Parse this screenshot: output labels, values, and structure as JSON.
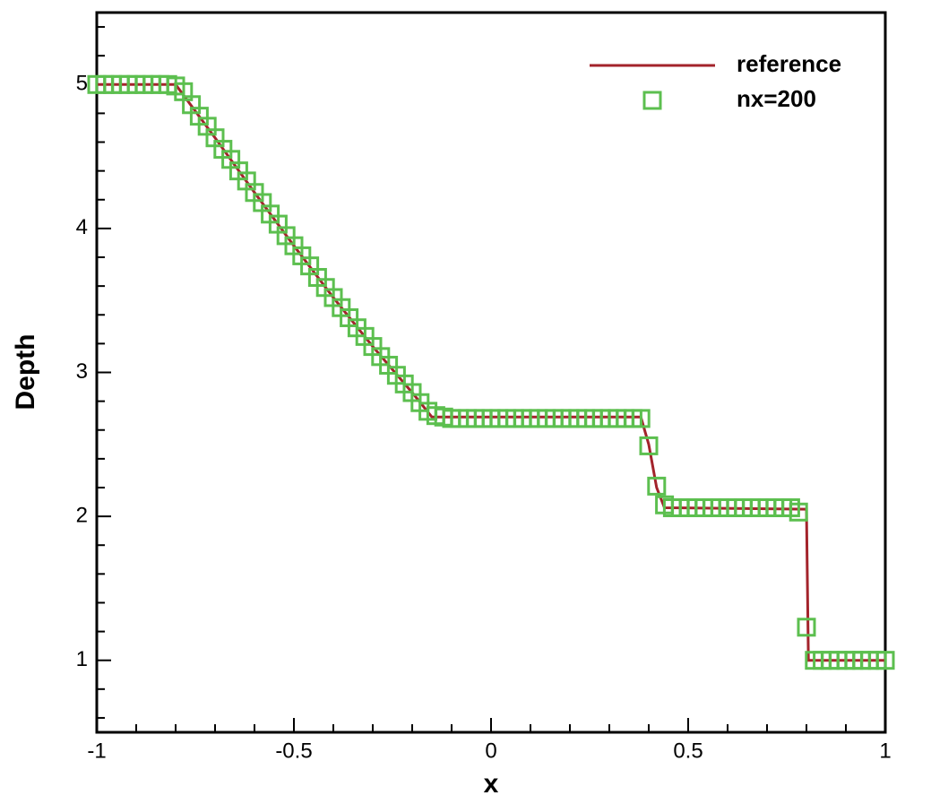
{
  "chart_data": {
    "type": "line",
    "xlabel": "x",
    "ylabel": "Depth",
    "xlim": [
      -1,
      1
    ],
    "ylim": [
      0.5,
      5.5
    ],
    "xticks": [
      -1,
      -0.5,
      0,
      0.5,
      1
    ],
    "yticks": [
      1,
      2,
      3,
      4,
      5
    ],
    "xminorticks": [
      -0.9,
      -0.8,
      -0.7,
      -0.6,
      -0.4,
      -0.3,
      -0.2,
      -0.1,
      0.1,
      0.2,
      0.3,
      0.4,
      0.6,
      0.7,
      0.8,
      0.9
    ],
    "yminorticks": [
      0.6,
      0.8,
      1.2,
      1.4,
      1.6,
      1.8,
      2.2,
      2.4,
      2.6,
      2.8,
      3.2,
      3.4,
      3.6,
      3.8,
      4.2,
      4.4,
      4.6,
      4.8,
      5.2,
      5.4
    ],
    "legend": "upper right",
    "series": [
      {
        "name": "reference",
        "color": "#a3232b",
        "style": "line",
        "x": [
          -1,
          -0.8,
          -0.7,
          -0.6,
          -0.5,
          -0.4,
          -0.3,
          -0.2,
          -0.15,
          0.38,
          0.4,
          0.42,
          0.44,
          0.8,
          0.805,
          1
        ],
        "values": [
          5,
          5,
          4.63,
          4.25,
          3.88,
          3.52,
          3.18,
          2.86,
          2.69,
          2.69,
          2.5,
          2.2,
          2.06,
          2.05,
          1,
          1
        ]
      },
      {
        "name": "nx=200",
        "color": "#5cbf4f",
        "style": "square",
        "x": [
          -1,
          -0.98,
          -0.96,
          -0.94,
          -0.92,
          -0.9,
          -0.88,
          -0.86,
          -0.84,
          -0.82,
          -0.8,
          -0.78,
          -0.76,
          -0.74,
          -0.72,
          -0.7,
          -0.68,
          -0.66,
          -0.64,
          -0.62,
          -0.6,
          -0.58,
          -0.56,
          -0.54,
          -0.52,
          -0.5,
          -0.48,
          -0.46,
          -0.44,
          -0.42,
          -0.4,
          -0.38,
          -0.36,
          -0.34,
          -0.32,
          -0.3,
          -0.28,
          -0.26,
          -0.24,
          -0.22,
          -0.2,
          -0.18,
          -0.16,
          -0.14,
          -0.12,
          -0.1,
          -0.08,
          -0.06,
          -0.04,
          -0.02,
          0,
          0.02,
          0.04,
          0.06,
          0.08,
          0.1,
          0.12,
          0.14,
          0.16,
          0.18,
          0.2,
          0.22,
          0.24,
          0.26,
          0.28,
          0.3,
          0.32,
          0.34,
          0.36,
          0.38,
          0.4,
          0.42,
          0.44,
          0.46,
          0.48,
          0.5,
          0.52,
          0.54,
          0.56,
          0.58,
          0.6,
          0.62,
          0.64,
          0.66,
          0.68,
          0.7,
          0.72,
          0.74,
          0.76,
          0.78,
          0.8,
          0.82,
          0.84,
          0.86,
          0.88,
          0.9,
          0.92,
          0.94,
          0.96,
          0.98,
          1
        ],
        "values": [
          5,
          5,
          5,
          5,
          5,
          5,
          5,
          5,
          5,
          5,
          4.99,
          4.95,
          4.86,
          4.78,
          4.71,
          4.63,
          4.55,
          4.48,
          4.4,
          4.33,
          4.25,
          4.18,
          4.1,
          4.03,
          3.95,
          3.88,
          3.81,
          3.74,
          3.66,
          3.59,
          3.52,
          3.45,
          3.38,
          3.31,
          3.25,
          3.18,
          3.11,
          3.05,
          2.98,
          2.92,
          2.86,
          2.79,
          2.73,
          2.7,
          2.69,
          2.68,
          2.68,
          2.68,
          2.68,
          2.68,
          2.68,
          2.68,
          2.68,
          2.68,
          2.68,
          2.68,
          2.68,
          2.68,
          2.68,
          2.68,
          2.68,
          2.68,
          2.68,
          2.68,
          2.68,
          2.68,
          2.68,
          2.68,
          2.68,
          2.68,
          2.49,
          2.21,
          2.08,
          2.06,
          2.06,
          2.06,
          2.06,
          2.06,
          2.06,
          2.06,
          2.06,
          2.06,
          2.06,
          2.06,
          2.06,
          2.06,
          2.06,
          2.06,
          2.06,
          2.03,
          1.23,
          1,
          1,
          1,
          1,
          1,
          1,
          1,
          1,
          1,
          1
        ]
      }
    ]
  }
}
